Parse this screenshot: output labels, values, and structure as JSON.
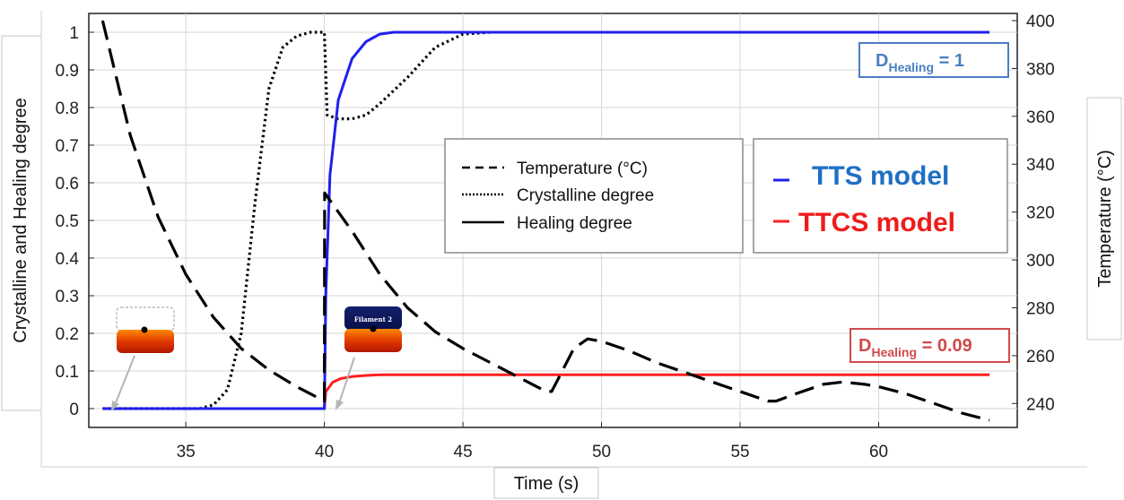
{
  "chart_data": {
    "type": "line",
    "xlabel": "Time (s)",
    "ylabel_left": "Crystalline and Healing degree",
    "ylabel_right": "Temperature (°C)",
    "xlim": [
      31.5,
      65
    ],
    "ylim_left": [
      -0.05,
      1.05
    ],
    "ylim_right": [
      230,
      403
    ],
    "x_ticks": [
      "35",
      "40",
      "45",
      "50",
      "55",
      "60"
    ],
    "y_left_ticks": [
      "0",
      "0.1",
      "0.2",
      "0.3",
      "0.4",
      "0.5",
      "0.6",
      "0.7",
      "0.8",
      "0.9",
      "1"
    ],
    "y_right_ticks": [
      "240",
      "260",
      "280",
      "300",
      "320",
      "340",
      "360",
      "380",
      "400"
    ],
    "grid": true,
    "legend": {
      "placement": "center-right",
      "entries": [
        {
          "label": "Temperature (°C)",
          "style": "dashed"
        },
        {
          "label": "Crystalline degree",
          "style": "dotted"
        },
        {
          "label": "Healing degree",
          "style": "solid"
        }
      ]
    },
    "model_legend": [
      {
        "label": "TTS model",
        "color": "#1f6fc4",
        "line_color": "#2020ee"
      },
      {
        "label": "TTCS model",
        "color": "#ee1c1c",
        "line_color": "#ff2020"
      }
    ],
    "annotations": [
      {
        "main": "D",
        "sub": "Healing",
        "value": " = 1",
        "color": "#4a7fc1"
      },
      {
        "main": "D",
        "sub": "Healing",
        "value": " = 0.09",
        "color": "#d24a4a"
      }
    ],
    "inset_labels": [
      "Filament 2"
    ],
    "series": [
      {
        "name": "Temperature (°C)",
        "axis": "right",
        "style": "dashed",
        "color": "#000000",
        "x": [
          32,
          33,
          34,
          35,
          36,
          37,
          38,
          39,
          40,
          40.01,
          41,
          42,
          43,
          44,
          45,
          46,
          47,
          48,
          48.2,
          49,
          49.5,
          50,
          51,
          52,
          53,
          54,
          55,
          56,
          56.3,
          57,
          58,
          58.7,
          59.5,
          60,
          61,
          62,
          63,
          64
        ],
        "values": [
          400,
          352,
          318,
          294,
          276,
          263,
          254,
          247,
          241,
          328,
          312,
          294,
          280,
          270,
          263,
          257,
          251,
          245,
          245,
          263,
          267,
          266,
          262,
          257,
          253,
          249,
          245,
          241,
          241,
          244,
          248,
          249,
          248,
          247,
          244,
          240,
          236,
          233
        ]
      },
      {
        "name": "Crystalline degree",
        "axis": "left",
        "style": "dotted",
        "color": "#000000",
        "x": [
          32,
          35,
          35.5,
          36,
          36.5,
          37,
          37.5,
          38,
          38.5,
          39,
          39.5,
          40,
          40.1,
          40.5,
          41,
          41.5,
          42,
          43,
          44,
          45,
          46
        ],
        "values": [
          0,
          0,
          0,
          0.01,
          0.05,
          0.2,
          0.55,
          0.85,
          0.96,
          0.99,
          1.0,
          1.0,
          0.78,
          0.77,
          0.77,
          0.78,
          0.81,
          0.88,
          0.96,
          0.995,
          1.0
        ]
      },
      {
        "name": "TTS model Healing degree",
        "axis": "left",
        "style": "solid",
        "color": "#2020ee",
        "x": [
          32,
          40,
          40.05,
          40.2,
          40.5,
          41,
          41.5,
          42,
          42.5,
          43,
          64
        ],
        "values": [
          0,
          0,
          0.3,
          0.62,
          0.82,
          0.93,
          0.975,
          0.995,
          1.0,
          1.0,
          1.0
        ]
      },
      {
        "name": "TTCS model Healing degree",
        "axis": "left",
        "style": "solid",
        "color": "#ff2020",
        "x": [
          32,
          40,
          40.05,
          40.3,
          40.6,
          41,
          41.5,
          42,
          64
        ],
        "values": [
          0,
          0,
          0.045,
          0.07,
          0.08,
          0.085,
          0.088,
          0.09,
          0.09
        ]
      }
    ]
  }
}
